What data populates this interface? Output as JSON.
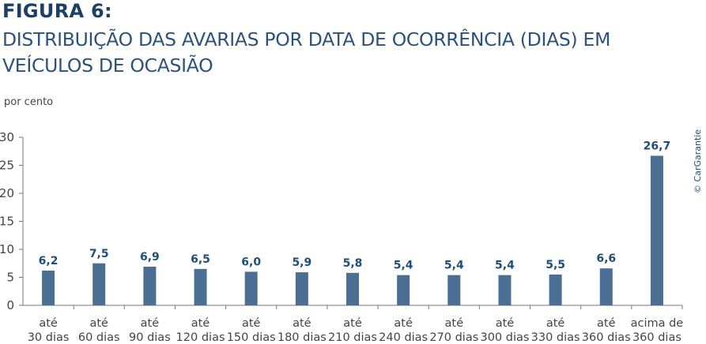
{
  "header": {
    "figure_label": "FIGURA 6:",
    "subtitle": "DISTRIBUIÇÃO DAS AVARIAS POR DATA DE OCORRÊNCIA (DIAS) EM VEÍCULOS DE OCASIÃO"
  },
  "credit": "© CarGarantie",
  "colors": {
    "bar": "#4b6e93",
    "value_label": "#1f4e79",
    "title": "#1b3f66"
  },
  "chart_data": {
    "type": "bar",
    "title": "DISTRIBUIÇÃO DAS AVARIAS POR DATA DE OCORRÊNCIA (DIAS) EM VEÍCULOS DE OCASIÃO",
    "ylabel": "por cento",
    "xlabel": "",
    "ylim": [
      0,
      30
    ],
    "yticks": [
      "0",
      "5",
      "10",
      "15",
      "20",
      "25",
      "30"
    ],
    "grid": false,
    "categories": [
      [
        "até",
        "30 dias"
      ],
      [
        "até",
        "60 dias"
      ],
      [
        "até",
        "90 dias"
      ],
      [
        "até",
        "120 dias"
      ],
      [
        "até",
        "150 dias"
      ],
      [
        "até",
        "180 dias"
      ],
      [
        "até",
        "210 dias"
      ],
      [
        "até",
        "240 dias"
      ],
      [
        "até",
        "270 dias"
      ],
      [
        "até",
        "300 dias"
      ],
      [
        "até",
        "330 dias"
      ],
      [
        "até",
        "360 dias"
      ],
      [
        "acima de",
        "360 dias"
      ]
    ],
    "values": [
      6.2,
      7.5,
      6.9,
      6.5,
      6.0,
      5.9,
      5.8,
      5.4,
      5.4,
      5.4,
      5.5,
      6.6,
      26.7
    ],
    "value_labels": [
      "6,2",
      "7,5",
      "6,9",
      "6,5",
      "6,0",
      "5,9",
      "5,8",
      "5,4",
      "5,4",
      "5,4",
      "5,5",
      "6,6",
      "26,7"
    ]
  }
}
